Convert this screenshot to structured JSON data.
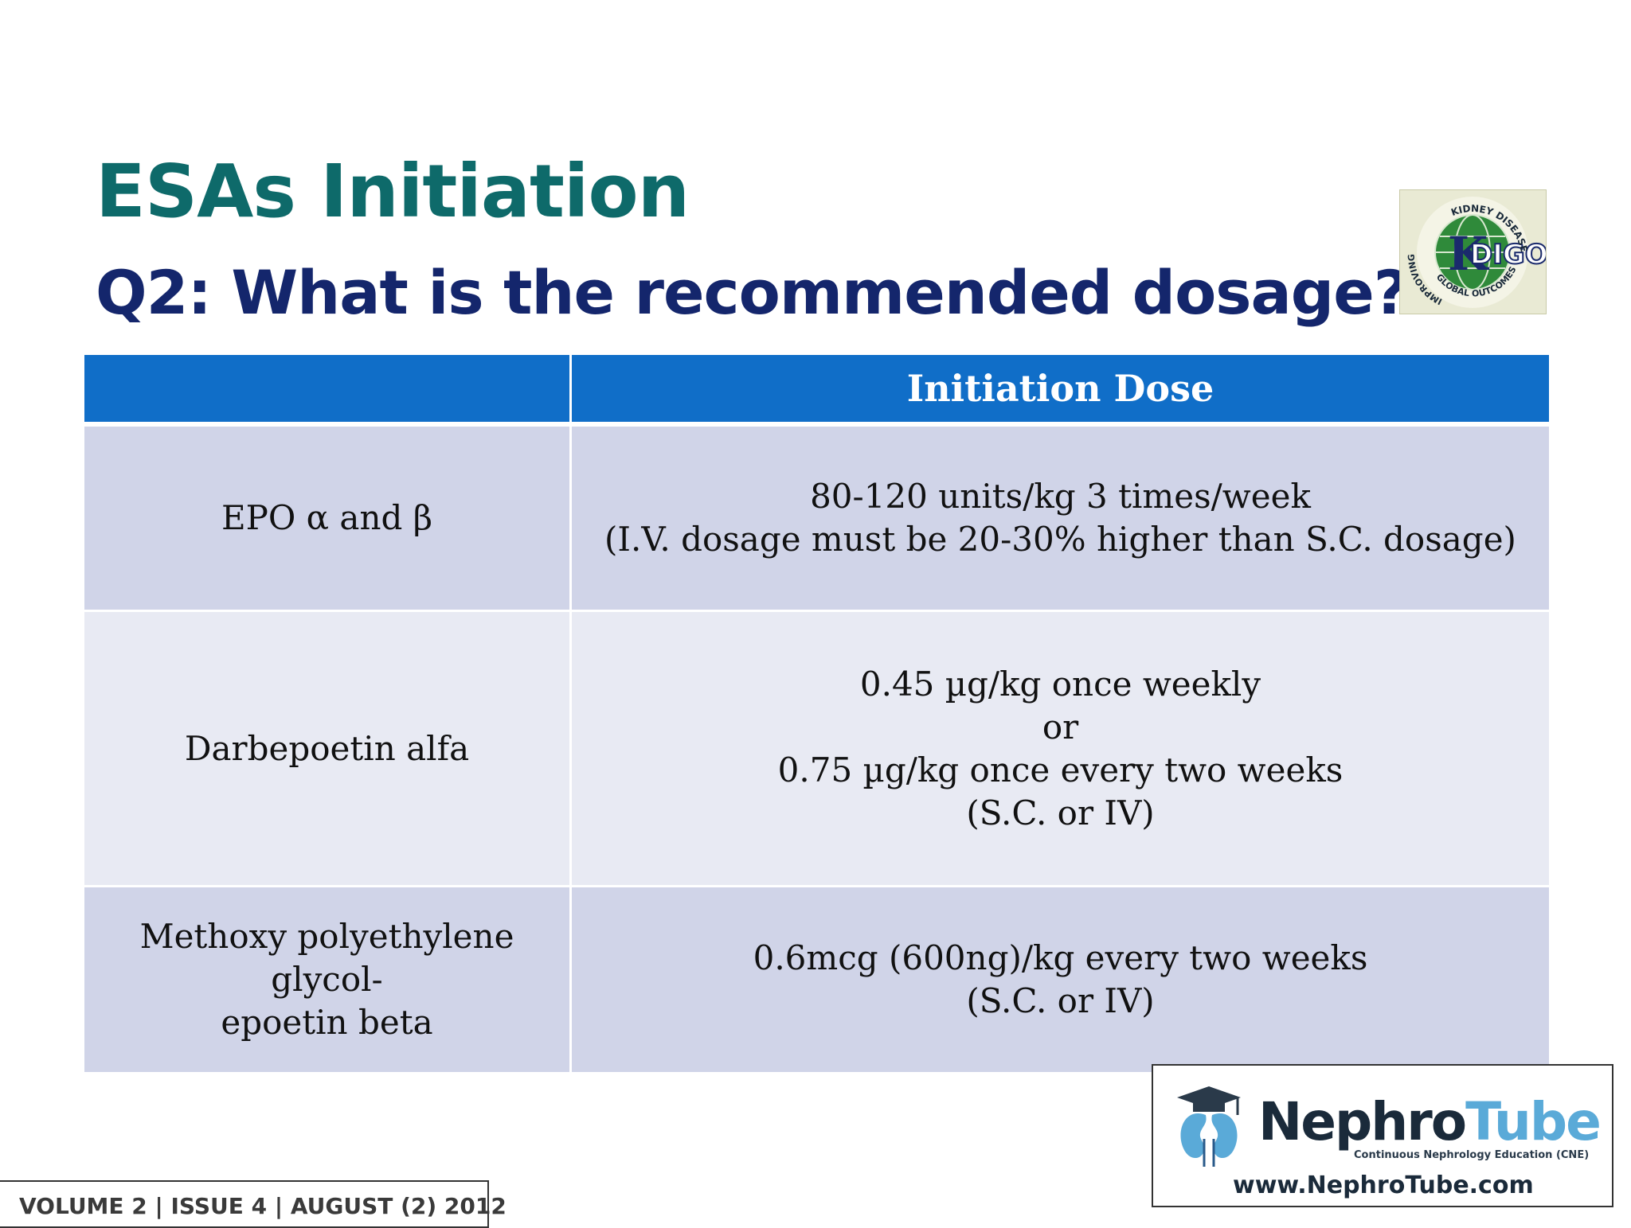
{
  "slide": {
    "title": "ESAs Initiation",
    "subtitle": "Q2: What is the recommended dosage?"
  },
  "table": {
    "header": [
      "",
      "Initiation Dose"
    ],
    "rows": [
      {
        "agent": "EPO α and β",
        "dose_lines": [
          "80-120 units/kg 3 times/week",
          "(I.V. dosage must be 20-30% higher than S.C. dosage)"
        ]
      },
      {
        "agent": "Darbepoetin alfa",
        "dose_lines": [
          "0.45 µg/kg once weekly",
          "or",
          "0.75 µg/kg once every two weeks",
          "(S.C. or IV)"
        ]
      },
      {
        "agent_lines": [
          "Methoxy polyethylene glycol-",
          "epoetin beta"
        ],
        "dose_lines": [
          "0.6mcg (600ng)/kg every two weeks",
          "(S.C. or IV)"
        ]
      }
    ]
  },
  "kdigo_logo": {
    "letter_k": "K",
    "letters": "DIGO",
    "ring_top": "KIDNEY DISEASE",
    "ring_left": "IMPROVING",
    "ring_bottom": "GLOBAL OUTCOMES"
  },
  "nephrotube": {
    "brand_part1": "Nephro",
    "brand_part2": "Tube",
    "tagline": "Continuous Nephrology Education (CNE)",
    "url": "www.NephroTube.com"
  },
  "footer": {
    "issue": "VOLUME 2 | ISSUE 4 | AUGUST (2) 2012"
  },
  "colors": {
    "title": "#0e6a6a",
    "subtitle": "#14266c",
    "table_header": "#106ec8",
    "row_dark": "#d0d4e8",
    "row_light": "#e8eaf3"
  }
}
